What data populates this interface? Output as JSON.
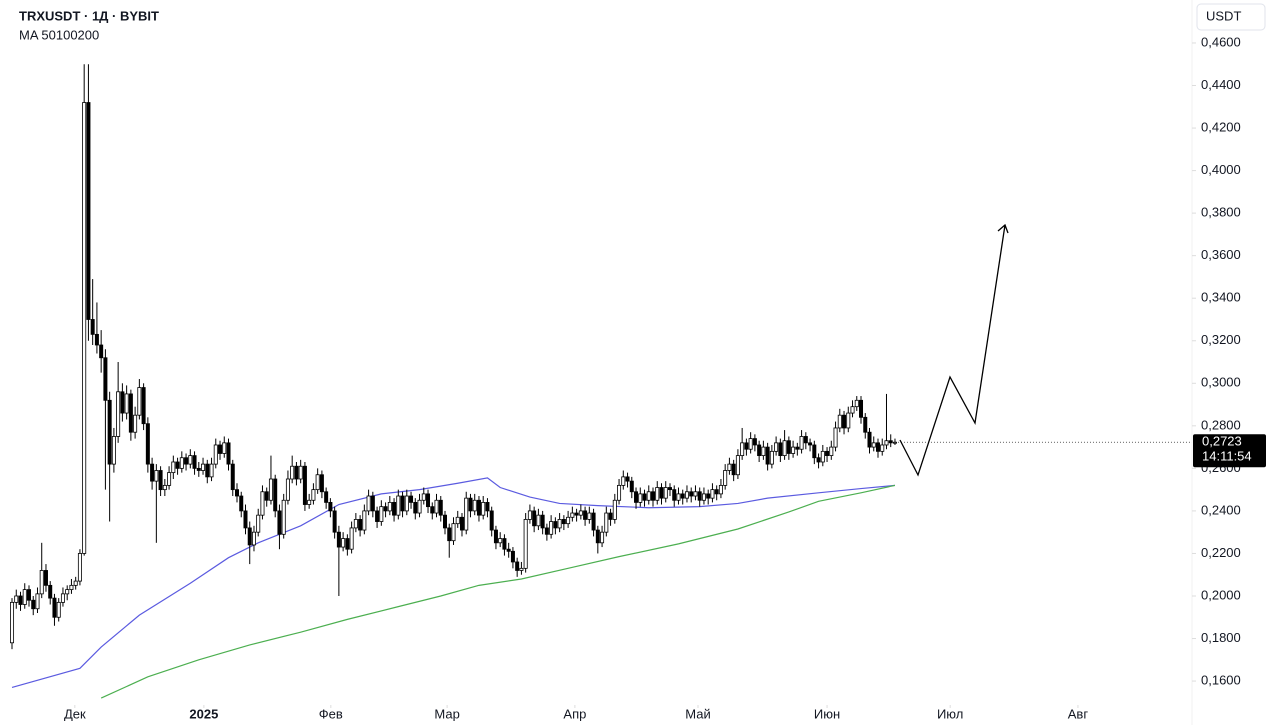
{
  "chart_data": {
    "type": "candlestick",
    "title": "TRXUSDT · 1Д · BYBIT",
    "subtitle": "MA 50100200",
    "currency": "USDT",
    "up_color": "#ffffff",
    "down_color": "#000000",
    "edge_color": "#000000",
    "xlim": [
      -2.83,
      277.5
    ],
    "ylim": [
      0.1511,
      0.4802
    ],
    "xticks": [
      {
        "value": 14.8,
        "label": "Дек"
      },
      {
        "value": 45.2,
        "label": "2025"
      },
      {
        "value": 75.1,
        "label": "Фев"
      },
      {
        "value": 102.5,
        "label": "Мар"
      },
      {
        "value": 132.6,
        "label": "Апр"
      },
      {
        "value": 161.6,
        "label": "Май"
      },
      {
        "value": 192.0,
        "label": "Июн"
      },
      {
        "value": 221.0,
        "label": "Июл"
      },
      {
        "value": 251.1,
        "label": "Авг"
      }
    ],
    "yticks": [
      {
        "value": 0.16,
        "label": "0,1600"
      },
      {
        "value": 0.18,
        "label": "0,1800"
      },
      {
        "value": 0.2,
        "label": "0,2000"
      },
      {
        "value": 0.22,
        "label": "0,2200"
      },
      {
        "value": 0.24,
        "label": "0,2400"
      },
      {
        "value": 0.26,
        "label": "0,2600"
      },
      {
        "value": 0.28,
        "label": "0,2800"
      },
      {
        "value": 0.3,
        "label": "0,3000"
      },
      {
        "value": 0.32,
        "label": "0,3200"
      },
      {
        "value": 0.34,
        "label": "0,3400"
      },
      {
        "value": 0.36,
        "label": "0,3600"
      },
      {
        "value": 0.38,
        "label": "0,3800"
      },
      {
        "value": 0.4,
        "label": "0,4000"
      },
      {
        "value": 0.42,
        "label": "0,4200"
      },
      {
        "value": 0.44,
        "label": "0,4400"
      },
      {
        "value": 0.46,
        "label": "0,4600"
      }
    ],
    "last_price": {
      "value": 0.2723,
      "label": "0,2723"
    },
    "countdown": "14:11:54",
    "candles": [
      [
        0.178,
        0.199,
        0.175,
        0.197
      ],
      [
        0.197,
        0.203,
        0.194,
        0.2
      ],
      [
        0.2,
        0.202,
        0.193,
        0.196
      ],
      [
        0.196,
        0.206,
        0.194,
        0.203
      ],
      [
        0.203,
        0.205,
        0.195,
        0.198
      ],
      [
        0.198,
        0.2,
        0.191,
        0.194
      ],
      [
        0.194,
        0.204,
        0.192,
        0.201
      ],
      [
        0.201,
        0.225,
        0.199,
        0.212
      ],
      [
        0.212,
        0.215,
        0.202,
        0.205
      ],
      [
        0.205,
        0.207,
        0.196,
        0.199
      ],
      [
        0.199,
        0.201,
        0.186,
        0.19
      ],
      [
        0.19,
        0.199,
        0.188,
        0.197
      ],
      [
        0.197,
        0.204,
        0.195,
        0.201
      ],
      [
        0.201,
        0.205,
        0.198,
        0.203
      ],
      [
        0.203,
        0.208,
        0.201,
        0.205
      ],
      [
        0.205,
        0.209,
        0.203,
        0.207
      ],
      [
        0.207,
        0.222,
        0.205,
        0.22
      ],
      [
        0.22,
        0.45,
        0.219,
        0.432
      ],
      [
        0.432,
        0.45,
        0.32,
        0.33
      ],
      [
        0.33,
        0.349,
        0.318,
        0.323
      ],
      [
        0.323,
        0.338,
        0.314,
        0.318
      ],
      [
        0.318,
        0.325,
        0.305,
        0.312
      ],
      [
        0.312,
        0.316,
        0.25,
        0.292
      ],
      [
        0.292,
        0.296,
        0.235,
        0.262
      ],
      [
        0.262,
        0.279,
        0.258,
        0.275
      ],
      [
        0.275,
        0.31,
        0.272,
        0.296
      ],
      [
        0.296,
        0.3,
        0.282,
        0.286
      ],
      [
        0.286,
        0.299,
        0.283,
        0.295
      ],
      [
        0.295,
        0.297,
        0.273,
        0.277
      ],
      [
        0.277,
        0.289,
        0.274,
        0.285
      ],
      [
        0.285,
        0.302,
        0.283,
        0.298
      ],
      [
        0.298,
        0.3,
        0.278,
        0.281
      ],
      [
        0.281,
        0.284,
        0.258,
        0.262
      ],
      [
        0.262,
        0.265,
        0.25,
        0.254
      ],
      [
        0.254,
        0.262,
        0.225,
        0.259
      ],
      [
        0.259,
        0.261,
        0.247,
        0.25
      ],
      [
        0.25,
        0.255,
        0.247,
        0.252
      ],
      [
        0.252,
        0.261,
        0.25,
        0.258
      ],
      [
        0.258,
        0.266,
        0.255,
        0.263
      ],
      [
        0.263,
        0.265,
        0.257,
        0.26
      ],
      [
        0.26,
        0.268,
        0.258,
        0.265
      ],
      [
        0.265,
        0.267,
        0.259,
        0.262
      ],
      [
        0.262,
        0.269,
        0.26,
        0.266
      ],
      [
        0.266,
        0.268,
        0.257,
        0.26
      ],
      [
        0.26,
        0.263,
        0.256,
        0.259
      ],
      [
        0.259,
        0.265,
        0.257,
        0.262
      ],
      [
        0.262,
        0.264,
        0.253,
        0.256
      ],
      [
        0.256,
        0.265,
        0.254,
        0.262
      ],
      [
        0.262,
        0.274,
        0.26,
        0.271
      ],
      [
        0.271,
        0.273,
        0.264,
        0.267
      ],
      [
        0.267,
        0.275,
        0.265,
        0.272
      ],
      [
        0.272,
        0.274,
        0.259,
        0.262
      ],
      [
        0.262,
        0.264,
        0.247,
        0.25
      ],
      [
        0.25,
        0.253,
        0.244,
        0.247
      ],
      [
        0.247,
        0.249,
        0.237,
        0.24
      ],
      [
        0.24,
        0.243,
        0.229,
        0.232
      ],
      [
        0.232,
        0.235,
        0.215,
        0.224
      ],
      [
        0.224,
        0.233,
        0.221,
        0.23
      ],
      [
        0.23,
        0.241,
        0.228,
        0.238
      ],
      [
        0.238,
        0.252,
        0.236,
        0.249
      ],
      [
        0.249,
        0.251,
        0.242,
        0.245
      ],
      [
        0.245,
        0.266,
        0.243,
        0.255
      ],
      [
        0.255,
        0.257,
        0.237,
        0.24
      ],
      [
        0.24,
        0.243,
        0.222,
        0.229
      ],
      [
        0.229,
        0.248,
        0.227,
        0.245
      ],
      [
        0.245,
        0.259,
        0.243,
        0.255
      ],
      [
        0.255,
        0.266,
        0.253,
        0.261
      ],
      [
        0.261,
        0.263,
        0.252,
        0.255
      ],
      [
        0.255,
        0.264,
        0.253,
        0.261
      ],
      [
        0.261,
        0.263,
        0.24,
        0.243
      ],
      [
        0.243,
        0.248,
        0.241,
        0.245
      ],
      [
        0.245,
        0.253,
        0.243,
        0.25
      ],
      [
        0.25,
        0.26,
        0.248,
        0.257
      ],
      [
        0.257,
        0.259,
        0.246,
        0.249
      ],
      [
        0.249,
        0.251,
        0.241,
        0.244
      ],
      [
        0.244,
        0.246,
        0.237,
        0.24
      ],
      [
        0.24,
        0.242,
        0.227,
        0.23
      ],
      [
        0.23,
        0.233,
        0.2,
        0.223
      ],
      [
        0.223,
        0.23,
        0.221,
        0.227
      ],
      [
        0.227,
        0.229,
        0.219,
        0.222
      ],
      [
        0.222,
        0.235,
        0.22,
        0.232
      ],
      [
        0.232,
        0.239,
        0.23,
        0.236
      ],
      [
        0.236,
        0.238,
        0.228,
        0.231
      ],
      [
        0.231,
        0.243,
        0.229,
        0.24
      ],
      [
        0.24,
        0.25,
        0.238,
        0.247
      ],
      [
        0.247,
        0.249,
        0.237,
        0.24
      ],
      [
        0.24,
        0.242,
        0.232,
        0.235
      ],
      [
        0.235,
        0.245,
        0.233,
        0.242
      ],
      [
        0.242,
        0.244,
        0.237,
        0.24
      ],
      [
        0.24,
        0.247,
        0.238,
        0.244
      ],
      [
        0.244,
        0.246,
        0.235,
        0.238
      ],
      [
        0.238,
        0.25,
        0.236,
        0.247
      ],
      [
        0.247,
        0.249,
        0.237,
        0.24
      ],
      [
        0.24,
        0.25,
        0.238,
        0.247
      ],
      [
        0.247,
        0.249,
        0.241,
        0.244
      ],
      [
        0.244,
        0.246,
        0.236,
        0.239
      ],
      [
        0.239,
        0.248,
        0.237,
        0.245
      ],
      [
        0.245,
        0.251,
        0.243,
        0.248
      ],
      [
        0.248,
        0.25,
        0.239,
        0.242
      ],
      [
        0.242,
        0.244,
        0.236,
        0.239
      ],
      [
        0.239,
        0.248,
        0.237,
        0.245
      ],
      [
        0.245,
        0.247,
        0.235,
        0.238
      ],
      [
        0.238,
        0.24,
        0.229,
        0.232
      ],
      [
        0.232,
        0.234,
        0.218,
        0.226
      ],
      [
        0.226,
        0.237,
        0.224,
        0.234
      ],
      [
        0.234,
        0.24,
        0.232,
        0.237
      ],
      [
        0.237,
        0.239,
        0.228,
        0.231
      ],
      [
        0.231,
        0.249,
        0.229,
        0.246
      ],
      [
        0.246,
        0.248,
        0.237,
        0.24
      ],
      [
        0.24,
        0.248,
        0.238,
        0.245
      ],
      [
        0.245,
        0.247,
        0.235,
        0.238
      ],
      [
        0.238,
        0.247,
        0.236,
        0.244
      ],
      [
        0.244,
        0.246,
        0.237,
        0.24
      ],
      [
        0.24,
        0.242,
        0.228,
        0.231
      ],
      [
        0.231,
        0.233,
        0.222,
        0.225
      ],
      [
        0.225,
        0.23,
        0.223,
        0.227
      ],
      [
        0.227,
        0.229,
        0.219,
        0.222
      ],
      [
        0.222,
        0.225,
        0.218,
        0.221
      ],
      [
        0.221,
        0.223,
        0.213,
        0.216
      ],
      [
        0.216,
        0.218,
        0.209,
        0.212
      ],
      [
        0.212,
        0.216,
        0.21,
        0.213
      ],
      [
        0.213,
        0.239,
        0.211,
        0.236
      ],
      [
        0.236,
        0.243,
        0.234,
        0.24
      ],
      [
        0.24,
        0.242,
        0.23,
        0.233
      ],
      [
        0.233,
        0.241,
        0.231,
        0.238
      ],
      [
        0.238,
        0.24,
        0.229,
        0.232
      ],
      [
        0.232,
        0.234,
        0.226,
        0.229
      ],
      [
        0.229,
        0.238,
        0.227,
        0.235
      ],
      [
        0.235,
        0.237,
        0.229,
        0.232
      ],
      [
        0.232,
        0.239,
        0.23,
        0.236
      ],
      [
        0.236,
        0.238,
        0.231,
        0.234
      ],
      [
        0.234,
        0.24,
        0.232,
        0.237
      ],
      [
        0.237,
        0.242,
        0.235,
        0.239
      ],
      [
        0.239,
        0.241,
        0.235,
        0.238
      ],
      [
        0.238,
        0.243,
        0.236,
        0.24
      ],
      [
        0.24,
        0.242,
        0.233,
        0.236
      ],
      [
        0.236,
        0.242,
        0.234,
        0.239
      ],
      [
        0.239,
        0.241,
        0.228,
        0.231
      ],
      [
        0.231,
        0.233,
        0.22,
        0.225
      ],
      [
        0.225,
        0.233,
        0.223,
        0.23
      ],
      [
        0.23,
        0.242,
        0.228,
        0.239
      ],
      [
        0.239,
        0.241,
        0.233,
        0.236
      ],
      [
        0.236,
        0.248,
        0.234,
        0.245
      ],
      [
        0.245,
        0.255,
        0.243,
        0.252
      ],
      [
        0.252,
        0.259,
        0.25,
        0.256
      ],
      [
        0.256,
        0.258,
        0.251,
        0.254
      ],
      [
        0.254,
        0.256,
        0.246,
        0.249
      ],
      [
        0.249,
        0.251,
        0.241,
        0.244
      ],
      [
        0.244,
        0.251,
        0.242,
        0.248
      ],
      [
        0.248,
        0.25,
        0.242,
        0.245
      ],
      [
        0.245,
        0.252,
        0.243,
        0.249
      ],
      [
        0.249,
        0.251,
        0.242,
        0.245
      ],
      [
        0.245,
        0.254,
        0.243,
        0.251
      ],
      [
        0.251,
        0.253,
        0.243,
        0.246
      ],
      [
        0.246,
        0.254,
        0.244,
        0.251
      ],
      [
        0.251,
        0.253,
        0.247,
        0.25
      ],
      [
        0.25,
        0.252,
        0.242,
        0.245
      ],
      [
        0.245,
        0.251,
        0.243,
        0.248
      ],
      [
        0.248,
        0.25,
        0.243,
        0.246
      ],
      [
        0.246,
        0.252,
        0.244,
        0.249
      ],
      [
        0.249,
        0.251,
        0.244,
        0.247
      ],
      [
        0.247,
        0.252,
        0.245,
        0.249
      ],
      [
        0.249,
        0.251,
        0.242,
        0.245
      ],
      [
        0.245,
        0.251,
        0.243,
        0.248
      ],
      [
        0.248,
        0.25,
        0.243,
        0.246
      ],
      [
        0.246,
        0.253,
        0.244,
        0.25
      ],
      [
        0.25,
        0.252,
        0.245,
        0.248
      ],
      [
        0.248,
        0.255,
        0.246,
        0.252
      ],
      [
        0.252,
        0.262,
        0.25,
        0.259
      ],
      [
        0.259,
        0.265,
        0.257,
        0.262
      ],
      [
        0.262,
        0.264,
        0.254,
        0.257
      ],
      [
        0.257,
        0.269,
        0.255,
        0.266
      ],
      [
        0.266,
        0.279,
        0.264,
        0.272
      ],
      [
        0.272,
        0.274,
        0.266,
        0.269
      ],
      [
        0.269,
        0.277,
        0.267,
        0.274
      ],
      [
        0.274,
        0.276,
        0.268,
        0.271
      ],
      [
        0.271,
        0.273,
        0.263,
        0.266
      ],
      [
        0.266,
        0.273,
        0.264,
        0.27
      ],
      [
        0.27,
        0.272,
        0.259,
        0.262
      ],
      [
        0.262,
        0.271,
        0.26,
        0.268
      ],
      [
        0.268,
        0.275,
        0.266,
        0.272
      ],
      [
        0.272,
        0.274,
        0.263,
        0.266
      ],
      [
        0.266,
        0.278,
        0.264,
        0.273
      ],
      [
        0.273,
        0.275,
        0.264,
        0.267
      ],
      [
        0.267,
        0.273,
        0.265,
        0.27
      ],
      [
        0.27,
        0.272,
        0.266,
        0.269
      ],
      [
        0.269,
        0.278,
        0.267,
        0.275
      ],
      [
        0.275,
        0.277,
        0.269,
        0.272
      ],
      [
        0.272,
        0.274,
        0.268,
        0.271
      ],
      [
        0.271,
        0.273,
        0.262,
        0.265
      ],
      [
        0.265,
        0.267,
        0.26,
        0.263
      ],
      [
        0.263,
        0.271,
        0.261,
        0.268
      ],
      [
        0.268,
        0.27,
        0.263,
        0.266
      ],
      [
        0.266,
        0.273,
        0.264,
        0.27
      ],
      [
        0.27,
        0.282,
        0.268,
        0.279
      ],
      [
        0.279,
        0.288,
        0.277,
        0.285
      ],
      [
        0.285,
        0.287,
        0.276,
        0.279
      ],
      [
        0.279,
        0.289,
        0.277,
        0.286
      ],
      [
        0.286,
        0.292,
        0.284,
        0.289
      ],
      [
        0.289,
        0.294,
        0.287,
        0.292
      ],
      [
        0.292,
        0.294,
        0.281,
        0.284
      ],
      [
        0.284,
        0.286,
        0.274,
        0.277
      ],
      [
        0.277,
        0.279,
        0.267,
        0.27
      ],
      [
        0.27,
        0.275,
        0.268,
        0.272
      ],
      [
        0.272,
        0.274,
        0.265,
        0.268
      ],
      [
        0.268,
        0.274,
        0.266,
        0.271
      ],
      [
        0.271,
        0.295,
        0.269,
        0.273
      ],
      [
        0.273,
        0.276,
        0.27,
        0.272
      ],
      [
        0.272,
        0.274,
        0.271,
        0.2723
      ]
    ],
    "moving_averages": [
      {
        "color": "#5b5be0",
        "x": [
          0,
          16,
          21,
          30,
          42,
          51,
          58,
          68,
          77,
          87,
          96,
          105,
          112,
          115,
          122,
          129,
          138,
          150,
          162,
          171,
          178,
          190,
          200,
          208
        ],
        "values": [
          0.157,
          0.166,
          0.176,
          0.191,
          0.206,
          0.218,
          0.225,
          0.233,
          0.243,
          0.248,
          0.25,
          0.253,
          0.2555,
          0.251,
          0.2465,
          0.2435,
          0.2425,
          0.2415,
          0.242,
          0.2435,
          0.246,
          0.2485,
          0.2505,
          0.252
        ]
      },
      {
        "color": "#4caf50",
        "x": [
          21,
          32,
          44,
          56,
          68,
          79,
          91,
          101,
          110,
          120,
          131,
          143,
          157,
          171,
          183,
          190,
          200,
          208
        ],
        "values": [
          0.152,
          0.162,
          0.17,
          0.177,
          0.183,
          0.189,
          0.195,
          0.2,
          0.205,
          0.208,
          0.213,
          0.2185,
          0.2245,
          0.2315,
          0.2395,
          0.2445,
          0.2485,
          0.252
        ]
      }
    ]
  }
}
